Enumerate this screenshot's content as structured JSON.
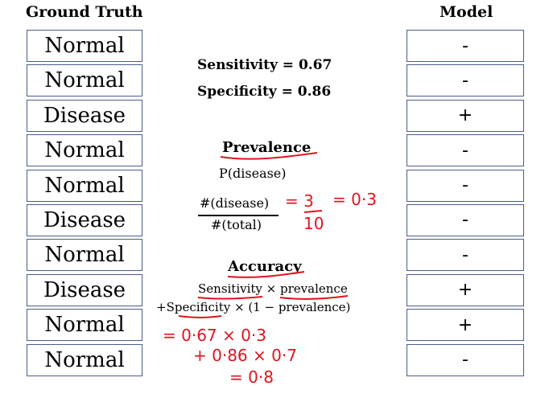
{
  "headers": {
    "ground_truth": "Ground Truth",
    "model": "Model"
  },
  "ground_truth": [
    "Normal",
    "Normal",
    "Disease",
    "Normal",
    "Normal",
    "Disease",
    "Normal",
    "Disease",
    "Normal",
    "Normal"
  ],
  "model": [
    "-",
    "-",
    "+",
    "-",
    "-",
    "-",
    "-",
    "+",
    "+",
    "-"
  ],
  "metrics": {
    "sensitivity": "Sensitivity = 0.67",
    "specificity": "Specificity = 0.86"
  },
  "prevalence": {
    "title": "Prevalence",
    "definition": "P(disease)",
    "numerator": "#(disease)",
    "denominator": "#(total)"
  },
  "accuracy": {
    "title": "Accuracy",
    "line1": "Sensitivity × prevalence",
    "line2": "+Specificity × (1 − prevalence)"
  },
  "handwriting": {
    "prev_eq1": "= 3",
    "prev_den": "10",
    "prev_eq2": "= 0·3",
    "acc_line1": "=  0·67 × 0·3",
    "acc_line2": "+ 0·86 × 0·7",
    "acc_line3": "= 0·8"
  },
  "colors": {
    "ink": "#e0141e",
    "cell_border": "#4a5d8a"
  }
}
